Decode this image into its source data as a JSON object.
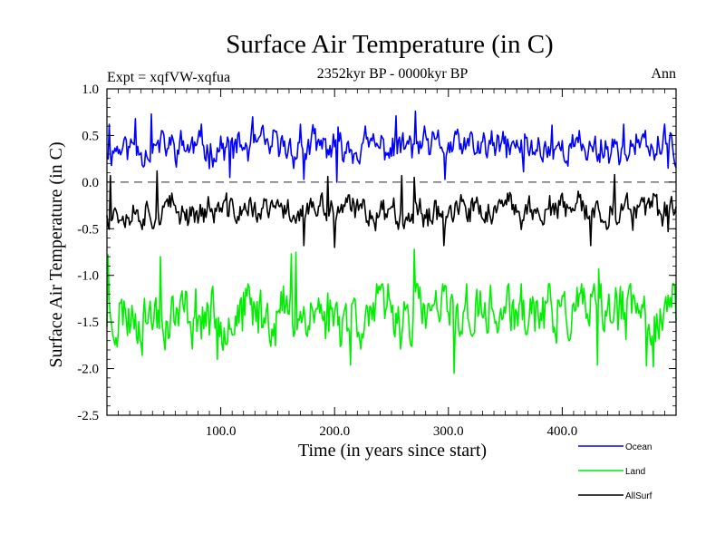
{
  "chart_data": {
    "type": "line",
    "title": "Surface Air Temperature (in C)",
    "subtitle": "2352kyr BP - 0000kyr BP",
    "experiment": "Expt = xqfVW-xqfua",
    "season": "Ann",
    "xlabel": "Time (in years since start)",
    "ylabel": "Surface Air Temperature (in C)",
    "xlim": [
      0,
      500
    ],
    "ylim": [
      -2.5,
      1.0
    ],
    "x_ticks": [
      100,
      200,
      300,
      400
    ],
    "x_tick_labels": [
      "100.0",
      "200.0",
      "300.0",
      "400.0"
    ],
    "y_ticks": [
      1.0,
      0.5,
      0.0,
      -0.5,
      -1.0,
      -1.5,
      -2.0,
      -2.5
    ],
    "y_tick_labels": [
      "1.0",
      "0.5",
      "0.0",
      "-0.5",
      "-1.0",
      "-1.5",
      "-2.0",
      "-2.5"
    ],
    "reference_line": 0.0,
    "series": [
      {
        "name": "Ocean",
        "color": "#0000ff",
        "mean": 0.37,
        "noise": 0.2,
        "seed": 11,
        "peaks": [
          [
            2,
            0.62
          ],
          [
            25,
            0.68
          ],
          [
            39,
            0.73
          ],
          [
            128,
            0.7
          ],
          [
            170,
            0.62
          ],
          [
            254,
            0.71
          ],
          [
            271,
            0.76
          ],
          [
            391,
            0.61
          ],
          [
            454,
            0.62
          ],
          [
            496,
            0.51
          ]
        ],
        "troughs": [
          [
            108,
            0.05
          ],
          [
            173,
            0.03
          ],
          [
            202,
            0.0
          ],
          [
            297,
            0.03
          ],
          [
            366,
            0.11
          ],
          [
            493,
            0.15
          ]
        ]
      },
      {
        "name": "Land",
        "color": "#00ee00",
        "mean": -1.41,
        "noise": 0.35,
        "seed": 23,
        "peaks": [
          [
            1,
            -0.78
          ],
          [
            47,
            -0.8
          ],
          [
            162,
            -0.77
          ],
          [
            166,
            -0.75
          ],
          [
            270,
            -0.72
          ],
          [
            432,
            -0.93
          ]
        ],
        "troughs": [
          [
            97,
            -1.9
          ],
          [
            214,
            -1.96
          ],
          [
            305,
            -2.05
          ],
          [
            431,
            -1.96
          ],
          [
            474,
            -1.97
          ],
          [
            480,
            -1.98
          ]
        ]
      },
      {
        "name": "AllSurf",
        "color": "#000000",
        "mean": -0.31,
        "noise": 0.18,
        "seed": 37,
        "peaks": [
          [
            3,
            0.07
          ],
          [
            44,
            0.12
          ],
          [
            194,
            0.06
          ],
          [
            259,
            0.07
          ],
          [
            270,
            0.05
          ],
          [
            446,
            0.08
          ]
        ],
        "troughs": [
          [
            173,
            -0.68
          ],
          [
            200,
            -0.7
          ],
          [
            296,
            -0.68
          ],
          [
            425,
            -0.68
          ],
          [
            493,
            -0.53
          ]
        ]
      }
    ],
    "legend_entries": [
      "Ocean",
      "Land",
      "AllSurf"
    ],
    "legend_placement": "bottom-right, outside plot"
  }
}
